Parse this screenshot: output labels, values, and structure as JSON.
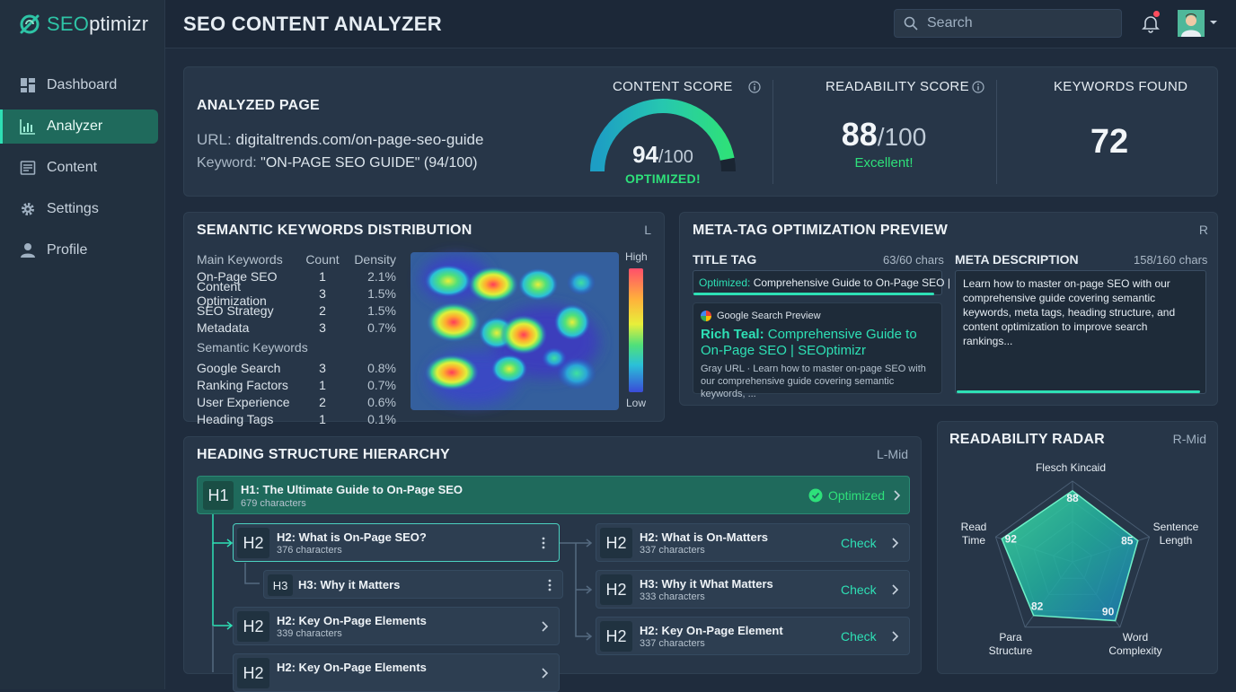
{
  "app": {
    "logo_prefix": "SEO",
    "logo_suffix": "ptimizr"
  },
  "sidebar": {
    "items": [
      {
        "label": "Dashboard",
        "icon": "dashboard-icon"
      },
      {
        "label": "Analyzer",
        "icon": "analyzer-icon",
        "active": true
      },
      {
        "label": "Content",
        "icon": "content-icon"
      },
      {
        "label": "Settings",
        "icon": "gear-icon"
      },
      {
        "label": "Profile",
        "icon": "user-icon"
      }
    ]
  },
  "header": {
    "title": "SEO CONTENT ANALYZER",
    "search_placeholder": "Search"
  },
  "analyzed_page": {
    "title": "ANALYZED PAGE",
    "url_label": "URL:",
    "url": "digitaltrends.com/on-page-seo-guide",
    "keyword_label": "Keyword:",
    "keyword": "\"ON-PAGE SEO GUIDE\" (94/100)"
  },
  "content_score": {
    "label": "CONTENT SCORE",
    "value": "94",
    "max": "/100",
    "status": "OPTIMIZED!",
    "fraction": 0.94
  },
  "readability_score": {
    "label": "READABILITY SCORE",
    "value": "88",
    "max": "/100",
    "status": "Excellent!"
  },
  "keywords_found": {
    "label": "KEYWORDS FOUND",
    "value": "72"
  },
  "semantic": {
    "title": "SEMANTIC KEYWORDS DISTRIBUTION",
    "corner": "L",
    "headers": {
      "name": "Main Keywords",
      "count": "Count",
      "density": "Density"
    },
    "main": [
      {
        "name": "On-Page SEO",
        "count": "1",
        "density": "2.1%"
      },
      {
        "name": "Content Optimization",
        "count": "3",
        "density": "1.5%"
      },
      {
        "name": "SEO Strategy",
        "count": "2",
        "density": "1.5%"
      },
      {
        "name": "Metadata",
        "count": "3",
        "density": "0.7%"
      }
    ],
    "semantic_label": "Semantic Keywords",
    "semantic_rows": [
      {
        "name": "Google Search",
        "count": "3",
        "density": "0.8%"
      },
      {
        "name": "Ranking Factors",
        "count": "1",
        "density": "0.7%"
      },
      {
        "name": "User Experience",
        "count": "2",
        "density": "0.6%"
      },
      {
        "name": "Heading Tags",
        "count": "1",
        "density": "0.1%"
      }
    ],
    "legend_high": "High",
    "legend_low": "Low"
  },
  "meta": {
    "title": "META-TAG OPTIMIZATION PREVIEW",
    "corner": "R",
    "title_tag_label": "TITLE TAG",
    "title_tag_chars": "63/60 chars",
    "title_tag_prefix": "Optimized:",
    "title_tag_value": "Comprehensive Guide to On-Page SEO |",
    "serp_header": "Google Search Preview",
    "serp_title_bold": "Rich Teal:",
    "serp_title": "Comprehensive Guide to On-Page SEO | SEOptimizr",
    "serp_desc": "Gray URL · Learn how to master on-page SEO with our comprehensive guide covering semantic keywords, ...",
    "desc_label": "META DESCRIPTION",
    "desc_chars": "158/160 chars",
    "desc_value": "Learn how to master on-page SEO with our comprehensive guide covering semantic keywords, meta tags, heading structure, and content optimization to improve search rankings..."
  },
  "headings": {
    "title": "HEADING STRUCTURE HIERARCHY",
    "corner": "L-Mid",
    "h1": {
      "badge": "H1",
      "text": "H1: The Ultimate Guide to On-Page SEO",
      "chars": "679 characters",
      "status": "Optimized"
    },
    "left": [
      {
        "badge": "H2",
        "text": "H2: What is On-Page SEO?",
        "chars": "376 characters"
      },
      {
        "badge": "H3",
        "text": "H3: Why it Matters"
      },
      {
        "badge": "H2",
        "text": "H2: Key On-Page Elements",
        "chars": "339 characters"
      },
      {
        "badge": "H2",
        "text": "H2: Key On-Page Elements"
      }
    ],
    "right": [
      {
        "badge": "H2",
        "text": "H2: What is On-Matters",
        "chars": "337 characters",
        "action": "Check"
      },
      {
        "badge": "H2",
        "text": "H3: Why it What Matters",
        "chars": "333 characters",
        "action": "Check"
      },
      {
        "badge": "H2",
        "text": "H2: Key On-Page Element",
        "chars": "337 characters",
        "action": "Check"
      }
    ]
  },
  "radar": {
    "title": "READABILITY RADAR",
    "corner": "R-Mid",
    "axes": [
      {
        "label": "Flesch Kincaid",
        "value": 88
      },
      {
        "label": "Sentence Length",
        "value": 85
      },
      {
        "label": "Word Complexity",
        "value": 90
      },
      {
        "label": "Para Structure",
        "value": 82
      },
      {
        "label": "Read Time",
        "value": 92
      }
    ],
    "value_labels": [
      "88",
      "85",
      "90",
      "82",
      "92"
    ]
  },
  "colors": {
    "accent": "#2ee0b5",
    "success": "#2ee07a",
    "active_nav": "#1f6a5c"
  }
}
